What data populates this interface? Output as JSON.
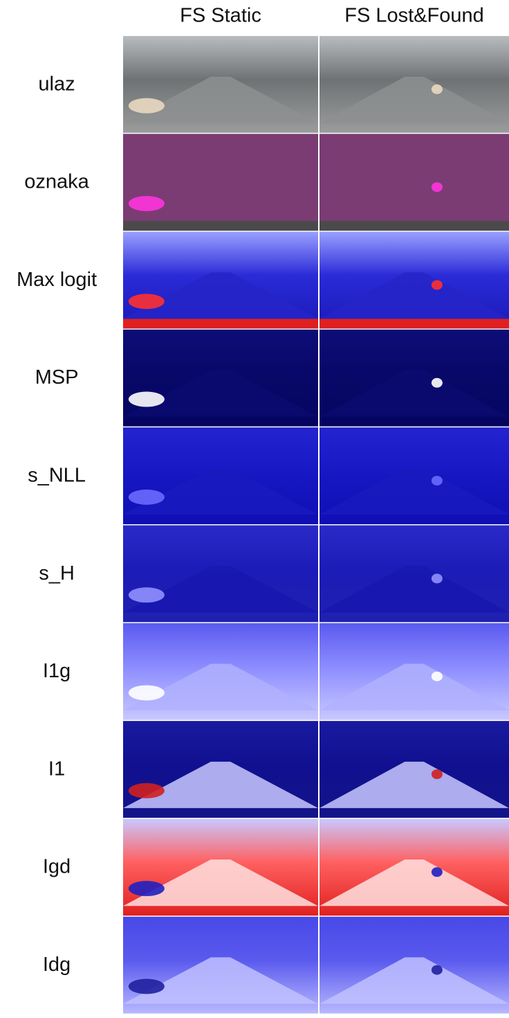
{
  "columns": [
    "FS Static",
    "FS Lost&Found"
  ],
  "rows": [
    "ulaz",
    "oznaka",
    "Max logit",
    "MSP",
    "s_NLL",
    "s_H",
    "I1g",
    "I1",
    "Igd",
    "Idg"
  ]
}
